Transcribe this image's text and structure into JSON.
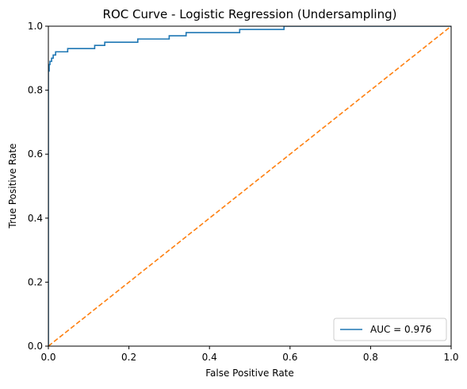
{
  "chart_data": {
    "type": "line",
    "title": "ROC Curve - Logistic Regression (Undersampling)",
    "xlabel": "False Positive Rate",
    "ylabel": "True Positive Rate",
    "xlim": [
      0.0,
      1.0
    ],
    "ylim": [
      0.0,
      1.0
    ],
    "xticks": [
      "0.0",
      "0.2",
      "0.4",
      "0.6",
      "0.8",
      "1.0"
    ],
    "yticks": [
      "0.0",
      "0.2",
      "0.4",
      "0.6",
      "0.8",
      "1.0"
    ],
    "grid": false,
    "legend_position": "lower right",
    "series": [
      {
        "name": "AUC = 0.976",
        "color": "#1f77b4",
        "style": "solid",
        "x": [
          0.0,
          0.0,
          0.002,
          0.002,
          0.004,
          0.004,
          0.008,
          0.008,
          0.012,
          0.012,
          0.018,
          0.018,
          0.048,
          0.048,
          0.115,
          0.115,
          0.14,
          0.14,
          0.222,
          0.222,
          0.3,
          0.3,
          0.342,
          0.342,
          0.475,
          0.475,
          0.585,
          0.585,
          1.0
        ],
        "y": [
          0.0,
          0.86,
          0.86,
          0.88,
          0.88,
          0.89,
          0.89,
          0.9,
          0.9,
          0.91,
          0.91,
          0.92,
          0.92,
          0.93,
          0.93,
          0.94,
          0.94,
          0.95,
          0.95,
          0.96,
          0.96,
          0.97,
          0.97,
          0.98,
          0.98,
          0.99,
          0.99,
          1.0,
          1.0
        ]
      },
      {
        "name": "",
        "color": "#ff7f0e",
        "style": "dashed",
        "x": [
          0.0,
          1.0
        ],
        "y": [
          0.0,
          1.0
        ]
      }
    ]
  }
}
